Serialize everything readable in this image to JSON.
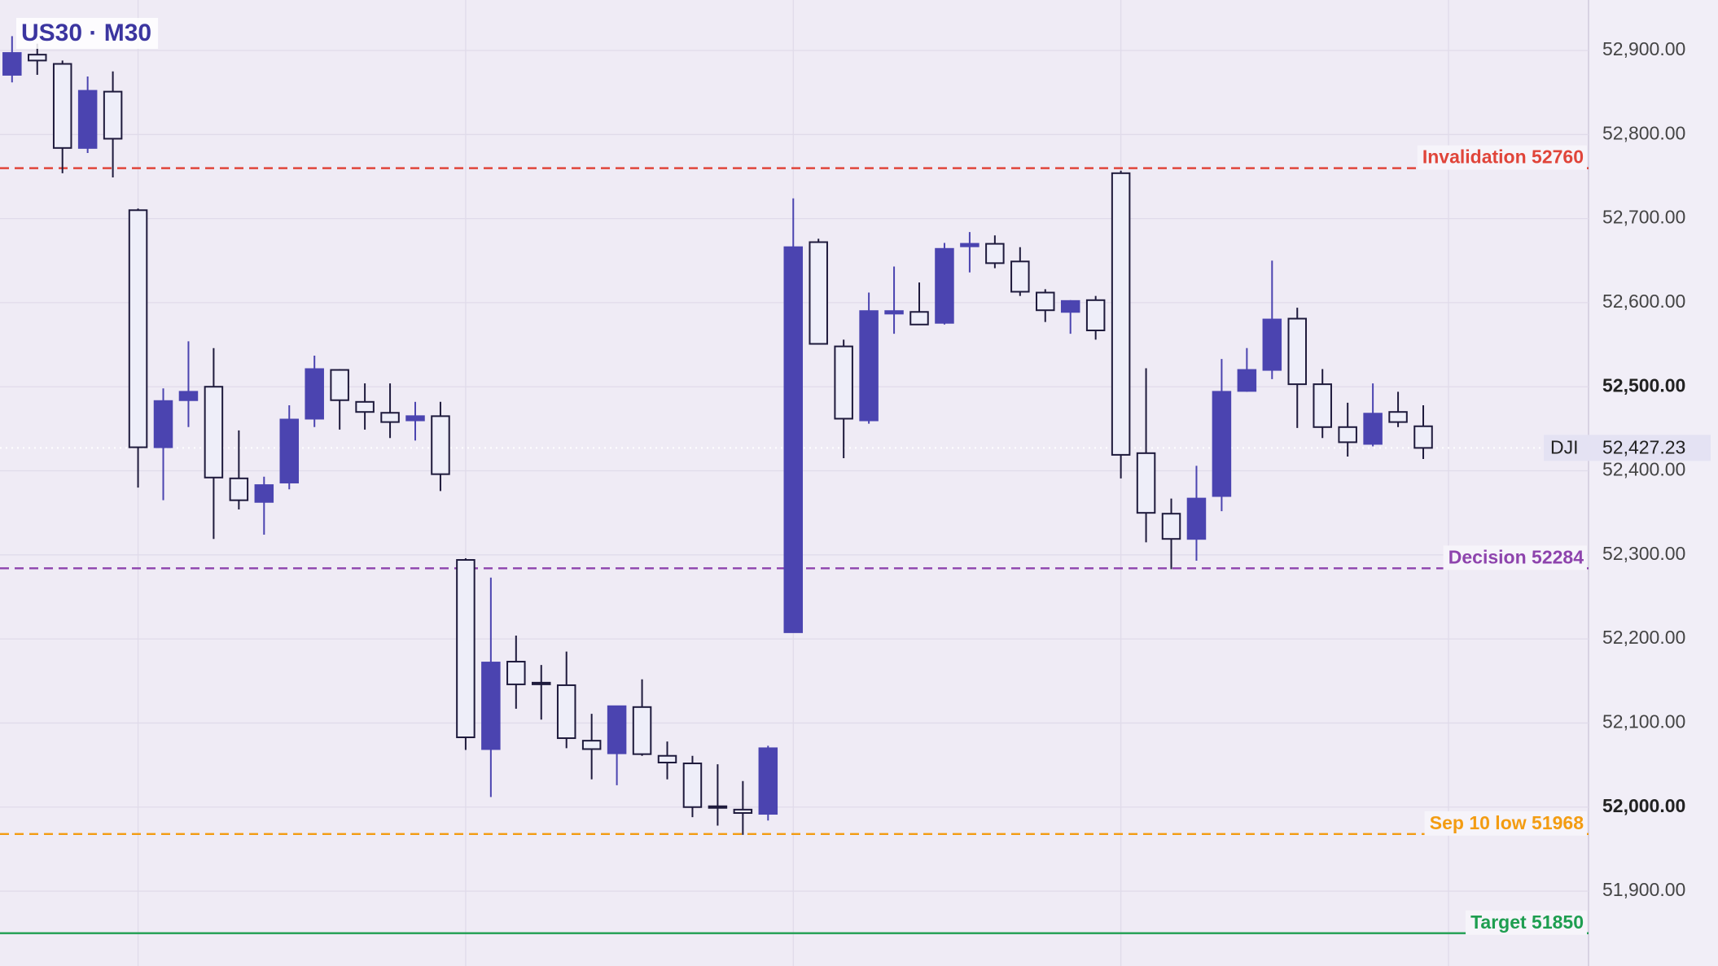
{
  "chart_data": {
    "type": "candlestick",
    "title": "US30 · M30",
    "open": [
      52871,
      52895,
      52884,
      52784,
      52851,
      52710,
      52428,
      52484,
      52500,
      52391,
      52363,
      52386,
      52462,
      52520,
      52482,
      52469,
      52460,
      52465,
      52294,
      52069,
      52173,
      52148,
      52145,
      52079,
      52064,
      52119,
      52061,
      52052,
      52001,
      51997,
      51992,
      52208,
      52672,
      52548,
      52460,
      52587,
      52589,
      52576,
      52667,
      52670,
      52649,
      52612,
      52589,
      52603,
      52754,
      52421,
      52349,
      52319,
      52370,
      52495,
      52520,
      52581,
      52503,
      52452,
      52432,
      52470,
      52453
    ],
    "high": [
      52917,
      52908,
      52888,
      52869,
      52875,
      52712,
      52498,
      52554,
      52546,
      52448,
      52393,
      52478,
      52537,
      52521,
      52504,
      52504,
      52482,
      52482,
      52296,
      52273,
      52204,
      52169,
      52185,
      52111,
      52120,
      52152,
      52078,
      52061,
      52051,
      52031,
      52073,
      52724,
      52676,
      52556,
      52612,
      52643,
      52624,
      52671,
      52684,
      52680,
      52666,
      52616,
      52603,
      52608,
      52757,
      52522,
      52367,
      52406,
      52533,
      52546,
      52650,
      52594,
      52521,
      52481,
      52504,
      52494,
      52478
    ],
    "low": [
      52862,
      52871,
      52754,
      52778,
      52749,
      52380,
      52365,
      52452,
      52319,
      52354,
      52324,
      52378,
      52452,
      52449,
      52449,
      52439,
      52436,
      52376,
      52068,
      52012,
      52117,
      52104,
      52070,
      52033,
      52026,
      52061,
      52033,
      51988,
      51978,
      51967,
      51984,
      52208,
      52550,
      52415,
      52456,
      52563,
      52574,
      52574,
      52636,
      52641,
      52608,
      52577,
      52563,
      52556,
      52391,
      52315,
      52283,
      52293,
      52352,
      52494,
      52509,
      52451,
      52439,
      52417,
      52429,
      52452,
      52414
    ],
    "close": [
      52897,
      52888,
      52784,
      52852,
      52795,
      52428,
      52483,
      52494,
      52392,
      52365,
      52383,
      52461,
      52521,
      52484,
      52470,
      52458,
      52465,
      52396,
      52083,
      52172,
      52146,
      52147,
      52082,
      52069,
      52120,
      52063,
      52053,
      52000,
      52000,
      51993,
      52070,
      52666,
      52551,
      52462,
      52590,
      52590,
      52574,
      52664,
      52670,
      52647,
      52613,
      52591,
      52602,
      52567,
      52419,
      52350,
      52319,
      52367,
      52494,
      52520,
      52580,
      52503,
      52452,
      52434,
      52468,
      52458,
      52427.23
    ],
    "up_color": "#4b44b0",
    "down_color": "#eeeef9",
    "ylim": [
      51811,
      52960
    ],
    "yticks": [
      {
        "value": 51900,
        "label": "51,900.00"
      },
      {
        "value": 52000,
        "label": "52,000.00"
      },
      {
        "value": 52100,
        "label": "52,100.00"
      },
      {
        "value": 52200,
        "label": "52,200.00"
      },
      {
        "value": 52300,
        "label": "52,300.00"
      },
      {
        "value": 52400,
        "label": "52,400.00"
      },
      {
        "value": 52500,
        "label": "52,500.00"
      },
      {
        "value": 52600,
        "label": "52,600.00"
      },
      {
        "value": 52700,
        "label": "52,700.00"
      },
      {
        "value": 52800,
        "label": "52,800.00"
      },
      {
        "value": 52900,
        "label": "52,900.00"
      }
    ],
    "grid": true,
    "levels": [
      {
        "label": "Invalidation 52760",
        "value": 52760,
        "color": "#e0453a",
        "dashed": true
      },
      {
        "label": "Decision 52284",
        "value": 52284,
        "color": "#8e44ad",
        "dashed": true
      },
      {
        "label": "Sep 10 low 51968",
        "value": 51968,
        "color": "#f39c12",
        "dashed": true
      },
      {
        "label": "Target 51850",
        "value": 51850,
        "color": "#1e9e50",
        "dashed": false
      }
    ],
    "last_price": {
      "value": 52427.23,
      "label": "52,427.23"
    },
    "symbol": "DJI"
  }
}
